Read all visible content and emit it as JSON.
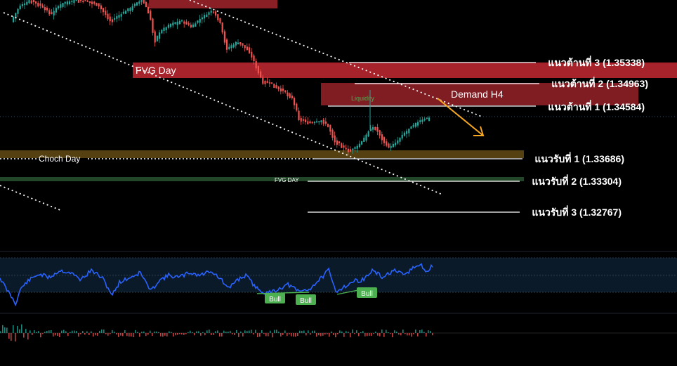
{
  "chart_data": {
    "type": "candlestick",
    "instrument_note": "",
    "price_axis": {
      "ylim": [
        1.325,
        1.375
      ],
      "grid": false
    },
    "zones": [
      {
        "name": "fvg-day-upper",
        "label": "FVG Day",
        "low": 1.3515,
        "high": 1.3542,
        "color": "#b5262f"
      },
      {
        "name": "demand-h4",
        "label": "Demand H4",
        "low": 1.3466,
        "high": 1.3502,
        "color": "#8b1f26"
      },
      {
        "name": "choch-day",
        "label": "Choch Day",
        "low": 1.3361,
        "high": 1.3373,
        "color": "#5a4312"
      },
      {
        "name": "fvg-day-lower",
        "label": "FVG DAY",
        "low": 1.3329,
        "high": 1.3333,
        "color": "#244a2a"
      }
    ],
    "levels": [
      {
        "name": "resistance-3",
        "label": "แนวต้านที่ 3 (1.35338)",
        "price": 1.35338
      },
      {
        "name": "resistance-2",
        "label": "แนวต้านที่ 2 (1.34963)",
        "price": 1.34963
      },
      {
        "name": "resistance-1",
        "label": "แนวต้านที่ 1 (1.34584)",
        "price": 1.34584
      },
      {
        "name": "support-1",
        "label": "แนวรับที่ 1 (1.33686)",
        "price": 1.33686
      },
      {
        "name": "support-2",
        "label": "แนวรับที่ 2 (1.33304)",
        "price": 1.33304
      },
      {
        "name": "support-3",
        "label": "แนวรับที่ 3 (1.32767)",
        "price": 1.32767
      }
    ],
    "annotations": [
      {
        "name": "liquidity-label",
        "text": "Liquidity",
        "price": 1.3484
      },
      {
        "name": "choch-label",
        "text": "Choch Day",
        "price": 1.3366
      },
      {
        "name": "fvg-day-lower-label",
        "text": "FVG DAY",
        "price": 1.3331
      }
    ],
    "oscillator": {
      "labels": [
        "Bull",
        "Bull",
        "Bull"
      ],
      "line_color": "#2962ff",
      "divergence_color": "#4caf50"
    },
    "colors": {
      "bull_candle": "#26a69a",
      "bear_candle": "#ef5350",
      "trendline": "#ffffff",
      "projection_arrow": "#f5a623",
      "level_line": "#ffffff",
      "level_text": "#ffffff"
    }
  }
}
